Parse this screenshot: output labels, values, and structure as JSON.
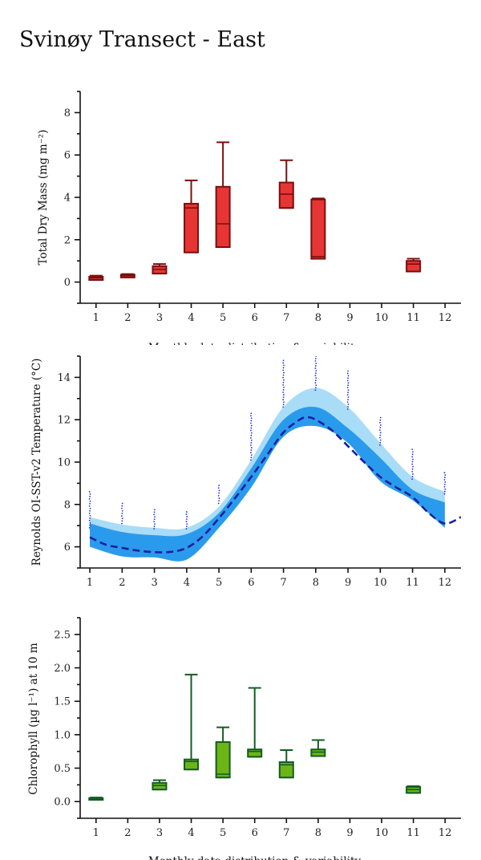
{
  "title": "Svinøy Transect - East",
  "chart_data": [
    {
      "type": "box",
      "ylabel": "Total Dry Mass (mg m⁻²)",
      "xlabel": "Monthly data distribution & variability",
      "x_ticks": [
        1,
        2,
        3,
        4,
        5,
        6,
        7,
        8,
        9,
        10,
        11,
        12
      ],
      "y_ticks": [
        0,
        2,
        4,
        6,
        8
      ],
      "ylim": [
        -1,
        9
      ],
      "xlim": [
        0.5,
        12.5
      ],
      "box_color": "#e63535",
      "edge_color": "#7a0f0f",
      "boxes": [
        {
          "month": 1,
          "whisker_low": 0.1,
          "q1": 0.1,
          "median": 0.2,
          "q3": 0.25,
          "whisker_high": 0.3
        },
        {
          "month": 2,
          "whisker_low": 0.22,
          "q1": 0.22,
          "median": 0.3,
          "q3": 0.35,
          "whisker_high": 0.38
        },
        {
          "month": 3,
          "whisker_low": 0.4,
          "q1": 0.4,
          "median": 0.6,
          "q3": 0.75,
          "whisker_high": 0.85
        },
        {
          "month": 4,
          "whisker_low": 1.4,
          "q1": 1.4,
          "median": 3.5,
          "q3": 3.7,
          "whisker_high": 4.8
        },
        {
          "month": 5,
          "whisker_low": 1.65,
          "q1": 1.65,
          "median": 2.75,
          "q3": 4.5,
          "whisker_high": 6.6
        },
        {
          "month": 7,
          "whisker_low": 3.5,
          "q1": 3.5,
          "median": 4.15,
          "q3": 4.7,
          "whisker_high": 5.75
        },
        {
          "month": 8,
          "whisker_low": 1.1,
          "q1": 1.1,
          "median": 1.2,
          "q3": 3.9,
          "whisker_high": 3.95
        },
        {
          "month": 11,
          "whisker_low": 0.5,
          "q1": 0.5,
          "median": 0.85,
          "q3": 1.0,
          "whisker_high": 1.1
        }
      ]
    },
    {
      "type": "line",
      "ylabel": "Reynolds OI-SST-v2 Temperature (°C)",
      "x_ticks": [
        1,
        2,
        3,
        4,
        5,
        6,
        7,
        8,
        9,
        10,
        11,
        12
      ],
      "y_ticks": [
        6,
        8,
        10,
        12,
        14
      ],
      "ylim": [
        5,
        15
      ],
      "xlim": [
        0.7,
        12.5
      ],
      "outer_band_color": "#a9dcf6",
      "inner_band_color": "#2a9bec",
      "line_color": "#1a1fa0",
      "dot_color": "#2030e0",
      "outer_band": {
        "x": [
          1,
          2,
          3,
          4,
          5,
          6,
          7,
          8,
          9,
          10,
          11,
          12
        ],
        "low": [
          6.0,
          5.55,
          5.5,
          5.4,
          6.9,
          8.8,
          11.2,
          11.7,
          10.9,
          9.1,
          8.2,
          6.9
        ],
        "high": [
          7.4,
          7.05,
          6.9,
          6.9,
          7.9,
          10.1,
          12.6,
          13.5,
          12.6,
          10.9,
          9.3,
          8.6
        ]
      },
      "inner_band": {
        "x": [
          1,
          2,
          3,
          4,
          5,
          6,
          7,
          8,
          9,
          10,
          11,
          12
        ],
        "low": [
          6.0,
          5.55,
          5.5,
          5.4,
          6.9,
          8.8,
          11.2,
          11.7,
          10.9,
          9.1,
          8.2,
          6.9
        ],
        "high": [
          7.1,
          6.7,
          6.55,
          6.6,
          7.6,
          9.7,
          12.0,
          12.6,
          11.6,
          10.2,
          8.7,
          8.1
        ]
      },
      "mean_line": {
        "x": [
          1,
          1.5,
          2,
          2.5,
          3,
          3.5,
          4,
          4.5,
          5,
          5.5,
          6,
          6.5,
          7,
          7.5,
          7.75,
          8,
          8.5,
          9,
          9.5,
          10,
          10.5,
          11,
          11.5,
          12,
          12.5
        ],
        "y": [
          6.45,
          6.1,
          5.95,
          5.82,
          5.75,
          5.76,
          5.95,
          6.5,
          7.35,
          8.3,
          9.3,
          10.35,
          11.4,
          12.0,
          12.12,
          12.0,
          11.5,
          10.75,
          10.0,
          9.3,
          8.8,
          8.35,
          7.6,
          7.1,
          7.4
        ]
      },
      "dot_ranges": [
        {
          "month": 1,
          "low": 6.9,
          "high": 8.6
        },
        {
          "month": 2,
          "low": 7.1,
          "high": 8.05
        },
        {
          "month": 3,
          "low": 6.85,
          "high": 7.75
        },
        {
          "month": 4,
          "low": 6.85,
          "high": 7.65
        },
        {
          "month": 5,
          "low": 8.05,
          "high": 8.9
        },
        {
          "month": 6,
          "low": 10.1,
          "high": 12.3
        },
        {
          "month": 7,
          "low": 12.6,
          "high": 14.8
        },
        {
          "month": 8,
          "low": 13.4,
          "high": 15.0
        },
        {
          "month": 9,
          "low": 12.5,
          "high": 14.3
        },
        {
          "month": 10,
          "low": 10.8,
          "high": 12.1
        },
        {
          "month": 11,
          "low": 9.2,
          "high": 10.6
        },
        {
          "month": 12,
          "low": 8.5,
          "high": 9.5
        }
      ]
    },
    {
      "type": "box",
      "ylabel": "Chlorophyll (µg l⁻¹) at 10 m",
      "xlabel": "Monthly data distribution & variability",
      "x_ticks": [
        1,
        2,
        3,
        4,
        5,
        6,
        7,
        8,
        9,
        10,
        11,
        12
      ],
      "y_ticks": [
        "0.0",
        "0.5",
        "1.0",
        "1.5",
        "2.0",
        "2.5"
      ],
      "ylim": [
        -0.25,
        2.75
      ],
      "xlim": [
        0.5,
        12.5
      ],
      "box_color": "#6cb515",
      "edge_color": "#145c23",
      "boxes": [
        {
          "month": 1,
          "whisker_low": 0.03,
          "q1": 0.03,
          "median": 0.04,
          "q3": 0.05,
          "whisker_high": 0.06
        },
        {
          "month": 3,
          "whisker_low": 0.18,
          "q1": 0.18,
          "median": 0.24,
          "q3": 0.28,
          "whisker_high": 0.32
        },
        {
          "month": 4,
          "whisker_low": 0.48,
          "q1": 0.48,
          "median": 0.6,
          "q3": 0.63,
          "whisker_high": 1.9
        },
        {
          "month": 5,
          "whisker_low": 0.36,
          "q1": 0.36,
          "median": 0.41,
          "q3": 0.89,
          "whisker_high": 1.11
        },
        {
          "month": 6,
          "whisker_low": 0.67,
          "q1": 0.67,
          "median": 0.75,
          "q3": 0.78,
          "whisker_high": 1.7
        },
        {
          "month": 7,
          "whisker_low": 0.36,
          "q1": 0.36,
          "median": 0.55,
          "q3": 0.59,
          "whisker_high": 0.77
        },
        {
          "month": 8,
          "whisker_low": 0.68,
          "q1": 0.68,
          "median": 0.74,
          "q3": 0.78,
          "whisker_high": 0.92
        },
        {
          "month": 11,
          "whisker_low": 0.13,
          "q1": 0.13,
          "median": 0.18,
          "q3": 0.22,
          "whisker_high": 0.23
        }
      ]
    }
  ]
}
